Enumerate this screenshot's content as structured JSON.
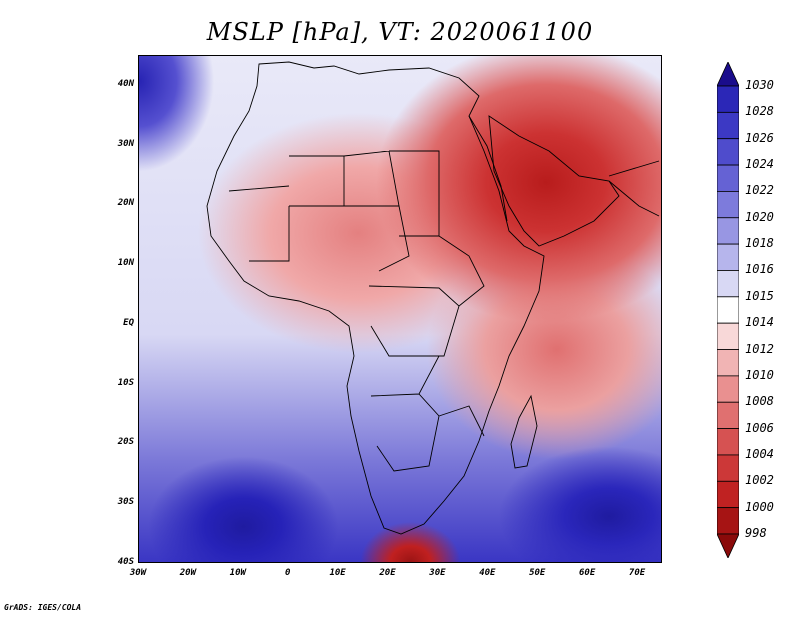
{
  "title": "MSLP [hPa], VT: 2020061100",
  "credit": "GrADS: IGES/COLA",
  "y_axis": {
    "labels": [
      "40N",
      "30N",
      "20N",
      "10N",
      "EQ",
      "10S",
      "20S",
      "30S",
      "40S"
    ],
    "values": [
      40,
      30,
      20,
      10,
      0,
      -10,
      -20,
      -30,
      -40
    ]
  },
  "x_axis": {
    "labels": [
      "30W",
      "20W",
      "10W",
      "0",
      "10E",
      "20E",
      "30E",
      "40E",
      "50E",
      "60E",
      "70E"
    ],
    "values": [
      -30,
      -20,
      -10,
      0,
      10,
      20,
      30,
      40,
      50,
      60,
      70
    ]
  },
  "colorbar": {
    "levels": [
      "1030",
      "1028",
      "1026",
      "1024",
      "1022",
      "1020",
      "1018",
      "1016",
      "1015",
      "1014",
      "1012",
      "1010",
      "1008",
      "1006",
      "1004",
      "1002",
      "1000",
      "998"
    ],
    "colors": [
      "#1a0c8c",
      "#2b27b7",
      "#3c39c4",
      "#4f4ccc",
      "#6562d4",
      "#7d7bdc",
      "#9896e3",
      "#b6b5ec",
      "#d8d8f4",
      "#ffffff",
      "#f8d8d8",
      "#f1b4b4",
      "#e99090",
      "#e07070",
      "#d65252",
      "#cc3838",
      "#c02222",
      "#a61414",
      "#8a0a0a"
    ]
  },
  "map": {
    "lon_range": [
      -30,
      75
    ],
    "lat_range": [
      -40,
      45
    ]
  }
}
